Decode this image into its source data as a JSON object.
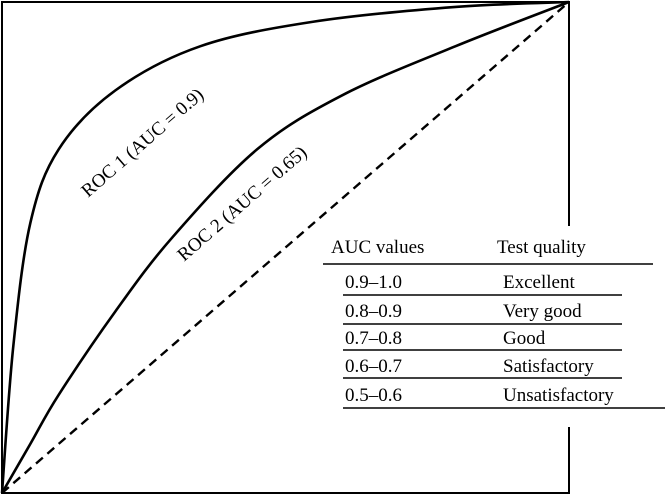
{
  "chart_data": {
    "type": "line",
    "xlim": [
      0,
      1
    ],
    "ylim": [
      0,
      1
    ],
    "grid": false,
    "series": [
      {
        "name": "ROC 1 (AUC = 0.9)",
        "style": "solid",
        "points": [
          [
            0,
            0
          ],
          [
            0.02,
            0.3
          ],
          [
            0.05,
            0.55
          ],
          [
            0.1,
            0.7
          ],
          [
            0.2,
            0.82
          ],
          [
            0.35,
            0.91
          ],
          [
            0.55,
            0.96
          ],
          [
            0.8,
            0.99
          ],
          [
            1,
            1
          ]
        ]
      },
      {
        "name": "ROC 2 (AUC = 0.65)",
        "style": "solid",
        "points": [
          [
            0,
            0
          ],
          [
            0.05,
            0.1
          ],
          [
            0.1,
            0.2
          ],
          [
            0.2,
            0.37
          ],
          [
            0.3,
            0.52
          ],
          [
            0.45,
            0.7
          ],
          [
            0.6,
            0.81
          ],
          [
            0.8,
            0.91
          ],
          [
            1,
            1
          ]
        ]
      },
      {
        "style": "dashed",
        "points": [
          [
            0,
            0
          ],
          [
            1,
            1
          ]
        ]
      }
    ],
    "color": "#000000"
  },
  "table": {
    "headers": [
      "AUC values",
      "Test quality"
    ],
    "rows": [
      [
        "0.9–1.0",
        "Excellent"
      ],
      [
        "0.8–0.9",
        "Very good"
      ],
      [
        "0.7–0.8",
        "Good"
      ],
      [
        "0.6–0.7",
        "Satisfactory"
      ],
      [
        "0.5–0.6",
        "Unsatisfactory"
      ]
    ]
  }
}
